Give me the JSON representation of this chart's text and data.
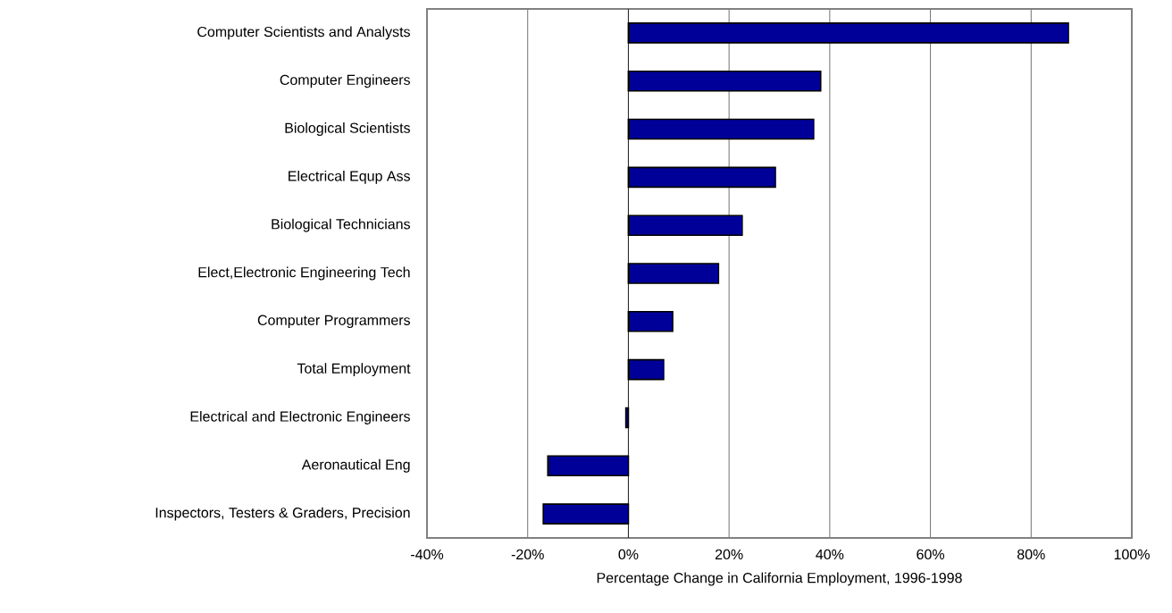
{
  "chart_data": {
    "type": "bar",
    "orientation": "horizontal",
    "xlabel": "Percentage Change in California Employment, 1996-1998",
    "categories": [
      "Computer Scientists and Analysts",
      "Computer Engineers",
      "Biological Scientists",
      "Electrical Equp Ass",
      "Biological Technicians",
      "Elect,Electronic Engineering Tech",
      "Computer Programmers",
      "Total Employment",
      "Electrical and Electronic Engineers",
      "Aeronautical Eng",
      "Inspectors, Testers & Graders, Precision"
    ],
    "values": [
      87.4,
      38.2,
      36.8,
      29.2,
      22.6,
      17.9,
      8.8,
      7.0,
      -0.5,
      -16.0,
      -16.9
    ],
    "color": "#000099",
    "xlim": [
      -40,
      100
    ],
    "xticks": [
      {
        "value": -40,
        "label": "-40%"
      },
      {
        "value": -20,
        "label": "-20%"
      },
      {
        "value": 0,
        "label": "0%"
      },
      {
        "value": 20,
        "label": "20%"
      },
      {
        "value": 40,
        "label": "40%"
      },
      {
        "value": 60,
        "label": "60%"
      },
      {
        "value": 80,
        "label": "80%"
      },
      {
        "value": 100,
        "label": "100%"
      }
    ],
    "grid": "x"
  }
}
